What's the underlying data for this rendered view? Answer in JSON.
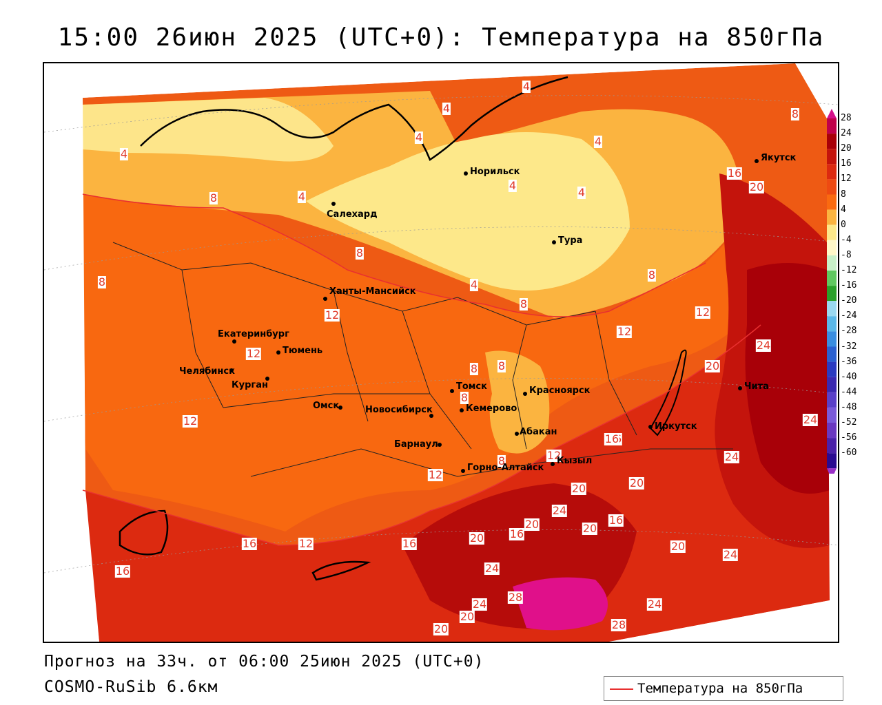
{
  "title": "15:00 26июн 2025 (UTC+0): Температура на 850гПа",
  "forecast_line": "Прогноз на 33ч. от 06:00 25июн 2025 (UTC+0)",
  "model_line": "COSMO-RuSib 6.6км",
  "legend": {
    "label": "Температура на 850гПа",
    "color": "#e83030"
  },
  "colorbar": {
    "labels": [
      "28",
      "24",
      "20",
      "16",
      "12",
      "8",
      "4",
      "0",
      "-4",
      "-8",
      "-12",
      "-16",
      "-20",
      "-24",
      "-28",
      "-32",
      "-36",
      "-40",
      "-44",
      "-48",
      "-52",
      "-56",
      "-60"
    ],
    "colors": [
      "#c0004a",
      "#a80008",
      "#c4140c",
      "#dc2a10",
      "#ee4a12",
      "#fa6a10",
      "#fbb440",
      "#fde88a",
      "#fff7c8",
      "#c8f0c8",
      "#60c860",
      "#2aa02a",
      "#9ad8f0",
      "#5ab8e8",
      "#3a8ee0",
      "#2a60d0",
      "#2a3ac0",
      "#3a28b0",
      "#5a40c8",
      "#7a5ad8",
      "#6a38c0",
      "#4a20a8",
      "#2a0a90"
    ],
    "top_color": "#d4108a",
    "bottom_color": "#9a30c8"
  },
  "cities": [
    {
      "name": "Якутск"
    },
    {
      "name": "Норильск"
    },
    {
      "name": "Салехард"
    },
    {
      "name": "Тура"
    },
    {
      "name": "Ханты-Мансийск"
    },
    {
      "name": "Екатеринбург"
    },
    {
      "name": "Тюмень"
    },
    {
      "name": "Челябинск"
    },
    {
      "name": "Курган"
    },
    {
      "name": "Омск"
    },
    {
      "name": "Новосибирск"
    },
    {
      "name": "Томск"
    },
    {
      "name": "Кемерово"
    },
    {
      "name": "Красноярск"
    },
    {
      "name": "Абакан"
    },
    {
      "name": "Барнаул"
    },
    {
      "name": "Горно-Алтайск"
    },
    {
      "name": "Кызыл"
    },
    {
      "name": "Иркутск"
    },
    {
      "name": "Чита"
    }
  ],
  "isotherm_labels": [
    "4",
    "4",
    "4",
    "4",
    "4",
    "4",
    "4",
    "4",
    "4",
    "8",
    "8",
    "8",
    "8",
    "8",
    "8",
    "8",
    "8",
    "8",
    "8",
    "12",
    "12",
    "12",
    "12",
    "12",
    "12",
    "12",
    "12",
    "16",
    "16",
    "16",
    "16",
    "16",
    "16",
    "16",
    "16",
    "20",
    "20",
    "20",
    "20",
    "20",
    "20",
    "20",
    "20",
    "20",
    "20",
    "24",
    "24",
    "24",
    "24",
    "24",
    "24",
    "24",
    "24",
    "28",
    "28"
  ]
}
